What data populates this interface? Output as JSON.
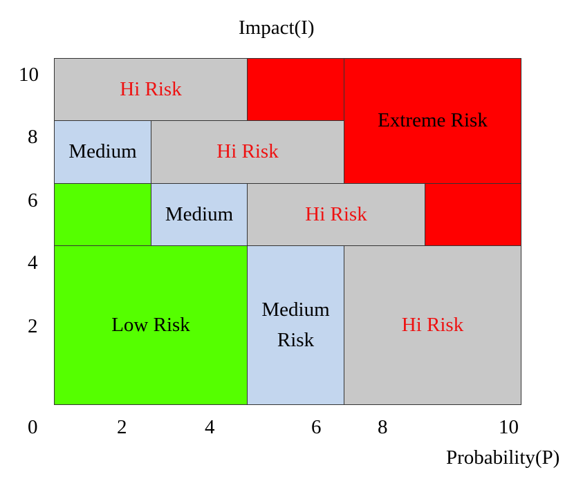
{
  "axes": {
    "y_title": "Impact(I)",
    "x_title": "Probability(P)",
    "y_ticks": [
      "10",
      "8",
      "6",
      "4",
      "2"
    ],
    "x_ticks": [
      "0",
      "2",
      "4",
      "6",
      "8",
      "10"
    ]
  },
  "colors": {
    "low": "#55ff00",
    "medium": "#c3d6ee",
    "high": "#c8c8c8",
    "extreme": "#ff0000",
    "high_text": "#ee1111",
    "dark_text": "#000000"
  },
  "cells": [
    {
      "label": "Hi Risk",
      "level": "high"
    },
    {
      "label": "",
      "level": "extreme"
    },
    {
      "label": "Extreme Risk",
      "level": "extreme"
    },
    {
      "label": "Medium",
      "level": "medium"
    },
    {
      "label": "Hi Risk",
      "level": "high"
    },
    {
      "label": "",
      "level": "low"
    },
    {
      "label": "Medium",
      "level": "medium"
    },
    {
      "label": "Hi Risk",
      "level": "high"
    },
    {
      "label": "",
      "level": "extreme"
    },
    {
      "label": "Low Risk",
      "level": "low"
    },
    {
      "label": "Medium\nRisk",
      "level": "medium"
    },
    {
      "label": "Hi Risk",
      "level": "high"
    }
  ]
}
